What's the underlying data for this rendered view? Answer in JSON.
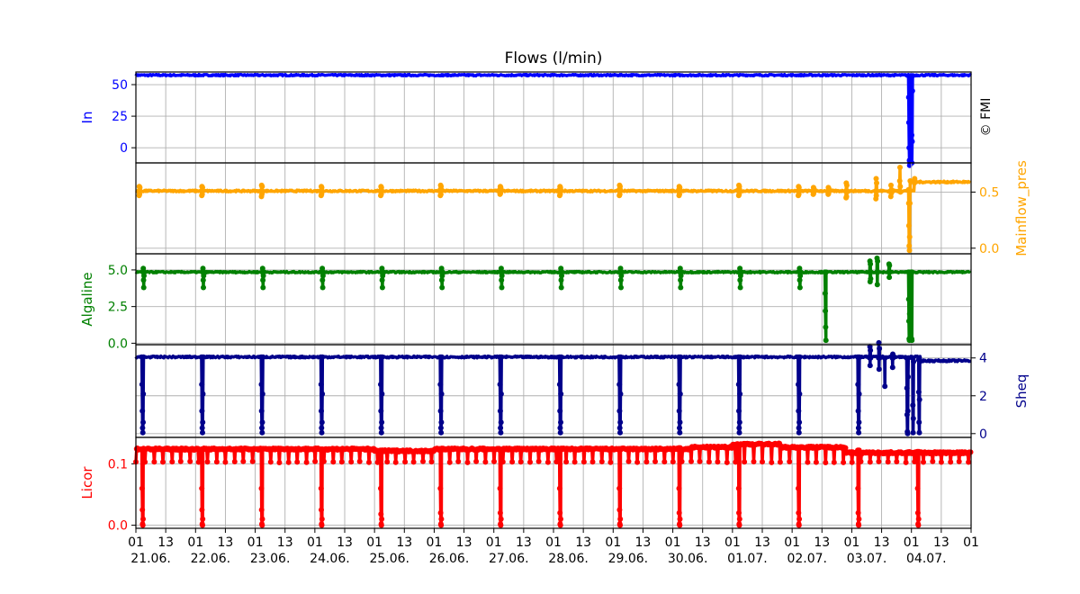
{
  "title": "Flows (l/min)",
  "watermark": "© FMI",
  "x_axis": {
    "hour_labels": [
      "01",
      "13",
      "01",
      "13",
      "01",
      "13",
      "01",
      "13",
      "01",
      "13",
      "01",
      "13",
      "01",
      "13",
      "01",
      "13",
      "01",
      "13",
      "01",
      "13",
      "01",
      "13",
      "01",
      "13",
      "01",
      "13",
      "01",
      "13",
      "01"
    ],
    "date_labels": [
      "21.06.",
      "22.06.",
      "23.06.",
      "24.06.",
      "25.06.",
      "26.06.",
      "27.06.",
      "28.06.",
      "29.06.",
      "30.06.",
      "01.07.",
      "02.07.",
      "03.07.",
      "04.07."
    ],
    "range_days": [
      0,
      14
    ]
  },
  "chart_data": [
    {
      "type": "line",
      "name": "In",
      "ylabel": "In",
      "ylabel_side": "left",
      "color": "#0000ff",
      "ylim": [
        -12,
        60
      ],
      "yticks": [
        "0",
        "25",
        "50"
      ],
      "ytick_values": [
        0,
        25,
        50
      ],
      "baseline": 57.5,
      "noise": 0.6,
      "events": [
        {
          "day": 12.95,
          "values": [
            57,
            40,
            20,
            0,
            -10,
            -14,
            0,
            30,
            55,
            57
          ]
        },
        {
          "day": 13.0,
          "values": [
            56,
            10,
            -12,
            5,
            45,
            57
          ]
        }
      ],
      "drift": []
    },
    {
      "type": "line",
      "name": "Mainflow_pres",
      "ylabel": "Mainflow_pres",
      "ylabel_side": "right",
      "color": "#ffa500",
      "ylim": [
        -0.05,
        0.76
      ],
      "yticks": [
        "0.0",
        "0.5"
      ],
      "ytick_values": [
        0,
        0.5
      ],
      "baseline": 0.51,
      "noise": 0.008,
      "events": [
        {
          "day": 0.05,
          "values": [
            0.51,
            0.47,
            0.55,
            0.48,
            0.54,
            0.51
          ]
        },
        {
          "day": 1.1,
          "values": [
            0.51,
            0.47,
            0.55,
            0.48,
            0.54,
            0.51
          ]
        },
        {
          "day": 2.1,
          "values": [
            0.51,
            0.46,
            0.56,
            0.48,
            0.55,
            0.51
          ]
        },
        {
          "day": 3.1,
          "values": [
            0.51,
            0.47,
            0.55,
            0.48,
            0.54,
            0.51
          ]
        },
        {
          "day": 4.1,
          "values": [
            0.51,
            0.47,
            0.55,
            0.48,
            0.54,
            0.51
          ]
        },
        {
          "day": 5.1,
          "values": [
            0.52,
            0.47,
            0.56,
            0.48,
            0.55,
            0.52
          ]
        },
        {
          "day": 6.1,
          "values": [
            0.52,
            0.48,
            0.55,
            0.49,
            0.54,
            0.52
          ]
        },
        {
          "day": 7.1,
          "values": [
            0.52,
            0.47,
            0.55,
            0.48,
            0.54,
            0.52
          ]
        },
        {
          "day": 8.1,
          "values": [
            0.52,
            0.47,
            0.56,
            0.48,
            0.55,
            0.52
          ]
        },
        {
          "day": 9.1,
          "values": [
            0.52,
            0.47,
            0.55,
            0.48,
            0.54,
            0.52
          ]
        },
        {
          "day": 10.1,
          "values": [
            0.52,
            0.47,
            0.56,
            0.48,
            0.55,
            0.52
          ]
        },
        {
          "day": 11.1,
          "values": [
            0.51,
            0.47,
            0.55,
            0.48,
            0.54,
            0.51
          ]
        },
        {
          "day": 11.35,
          "values": [
            0.51,
            0.48,
            0.54,
            0.49,
            0.53,
            0.51
          ]
        },
        {
          "day": 11.6,
          "values": [
            0.51,
            0.48,
            0.54,
            0.49,
            0.53,
            0.51
          ]
        },
        {
          "day": 11.9,
          "values": [
            0.51,
            0.45,
            0.58,
            0.46,
            0.56,
            0.5
          ]
        },
        {
          "day": 12.4,
          "values": [
            0.51,
            0.44,
            0.62,
            0.47,
            0.58,
            0.51
          ]
        },
        {
          "day": 12.65,
          "values": [
            0.51,
            0.46,
            0.56,
            0.49,
            0.52
          ]
        },
        {
          "day": 12.8,
          "values": [
            0.51,
            0.6,
            0.72,
            0.55,
            0.5
          ]
        },
        {
          "day": 12.95,
          "values": [
            0.52,
            0.4,
            0.2,
            0.02,
            -0.02,
            0.1,
            0.4,
            0.6
          ]
        },
        {
          "day": 13.05,
          "values": [
            0.58,
            0.62,
            0.6,
            0.59
          ]
        }
      ],
      "drift": [
        {
          "from": 13.05,
          "to": 14,
          "value": 0.59
        }
      ]
    },
    {
      "type": "line",
      "name": "Algaline",
      "ylabel": "Algaline",
      "ylabel_side": "left",
      "color": "#008000",
      "ylim": [
        -0.1,
        6.1
      ],
      "yticks": [
        "0.0",
        "2.5",
        "5.0"
      ],
      "ytick_values": [
        0,
        2.5,
        5
      ],
      "baseline": 4.85,
      "noise": 0.05,
      "events": [
        {
          "day": 0.12,
          "values": [
            4.85,
            5.1,
            4.3,
            3.8,
            4.6,
            4.85
          ]
        },
        {
          "day": 1.12,
          "values": [
            4.85,
            5.1,
            4.3,
            3.8,
            4.6,
            4.85
          ]
        },
        {
          "day": 2.12,
          "values": [
            4.85,
            5.1,
            4.3,
            3.8,
            4.6,
            4.85
          ]
        },
        {
          "day": 3.12,
          "values": [
            4.85,
            5.1,
            4.3,
            3.8,
            4.6,
            4.85
          ]
        },
        {
          "day": 4.12,
          "values": [
            4.85,
            5.1,
            4.3,
            3.8,
            4.6,
            4.85
          ]
        },
        {
          "day": 5.12,
          "values": [
            4.85,
            5.1,
            4.3,
            3.8,
            4.6,
            4.85
          ]
        },
        {
          "day": 6.12,
          "values": [
            4.85,
            5.1,
            4.3,
            3.8,
            4.6,
            4.85
          ]
        },
        {
          "day": 7.12,
          "values": [
            4.85,
            5.1,
            4.3,
            3.8,
            4.6,
            4.85
          ]
        },
        {
          "day": 8.12,
          "values": [
            4.85,
            5.1,
            4.3,
            3.8,
            4.6,
            4.85
          ]
        },
        {
          "day": 9.12,
          "values": [
            4.85,
            5.1,
            4.3,
            3.8,
            4.6,
            4.85
          ]
        },
        {
          "day": 10.12,
          "values": [
            4.85,
            5.1,
            4.3,
            3.8,
            4.6,
            4.85
          ]
        },
        {
          "day": 11.12,
          "values": [
            4.85,
            5.1,
            4.3,
            3.8,
            4.6,
            4.85
          ]
        },
        {
          "day": 11.55,
          "values": [
            4.85,
            3.4,
            2.2,
            1.1,
            0.2,
            4.85
          ]
        },
        {
          "day": 12.3,
          "values": [
            4.85,
            5.6,
            4.2,
            5.4,
            4.4,
            4.85
          ]
        },
        {
          "day": 12.42,
          "values": [
            4.85,
            5.8,
            4.0,
            5.6,
            4.85
          ]
        },
        {
          "day": 12.62,
          "values": [
            4.85,
            5.4,
            4.5,
            5.3,
            4.85
          ]
        },
        {
          "day": 12.95,
          "values": [
            4.85,
            3.0,
            1.5,
            0.3,
            0.2,
            2.0,
            4.85
          ]
        },
        {
          "day": 13.0,
          "values": [
            4.85,
            0.3,
            0.2,
            4.85
          ]
        }
      ],
      "drift": []
    },
    {
      "type": "line",
      "name": "Sheq",
      "ylabel": "Sheq",
      "ylabel_side": "right",
      "color": "#00008b",
      "ylim": [
        -0.2,
        4.7
      ],
      "yticks": [
        "0",
        "2",
        "4"
      ],
      "ytick_values": [
        0,
        2,
        4
      ],
      "baseline": 4.05,
      "noise": 0.05,
      "events": [
        {
          "day": 0.1,
          "values": [
            4.05,
            2.6,
            1.2,
            0.3,
            0.05,
            0.6,
            2.1,
            4.05
          ]
        },
        {
          "day": 1.1,
          "values": [
            4.05,
            2.6,
            1.2,
            0.3,
            0.05,
            0.6,
            2.1,
            4.05
          ]
        },
        {
          "day": 2.1,
          "values": [
            4.05,
            2.6,
            1.2,
            0.3,
            0.05,
            0.6,
            2.1,
            4.05
          ]
        },
        {
          "day": 3.1,
          "values": [
            4.05,
            2.6,
            1.2,
            0.3,
            0.05,
            0.6,
            2.1,
            4.05
          ]
        },
        {
          "day": 4.1,
          "values": [
            4.05,
            2.6,
            1.2,
            0.3,
            0.05,
            0.6,
            2.1,
            4.05
          ]
        },
        {
          "day": 5.1,
          "values": [
            4.05,
            2.6,
            1.2,
            0.3,
            0.05,
            0.6,
            2.1,
            4.05
          ]
        },
        {
          "day": 6.1,
          "values": [
            4.05,
            2.6,
            1.2,
            0.3,
            0.05,
            0.6,
            2.1,
            4.05
          ]
        },
        {
          "day": 7.1,
          "values": [
            4.05,
            2.6,
            1.2,
            0.3,
            0.05,
            0.6,
            2.1,
            4.05
          ]
        },
        {
          "day": 8.1,
          "values": [
            4.05,
            2.6,
            1.2,
            0.3,
            0.05,
            0.6,
            2.1,
            4.05
          ]
        },
        {
          "day": 9.1,
          "values": [
            4.05,
            2.6,
            1.2,
            0.3,
            0.05,
            0.6,
            2.1,
            4.05
          ]
        },
        {
          "day": 10.1,
          "values": [
            4.05,
            2.6,
            1.2,
            0.3,
            0.05,
            0.6,
            2.1,
            4.05
          ]
        },
        {
          "day": 11.1,
          "values": [
            4.05,
            2.6,
            1.2,
            0.3,
            0.05,
            0.6,
            2.1,
            4.05
          ]
        },
        {
          "day": 12.1,
          "values": [
            4.05,
            2.6,
            1.2,
            0.3,
            0.05,
            0.6,
            2.1,
            4.05
          ]
        },
        {
          "day": 12.3,
          "values": [
            4.0,
            4.6,
            3.6,
            4.4,
            4.0
          ]
        },
        {
          "day": 12.45,
          "values": [
            4.0,
            4.8,
            3.4,
            4.5,
            4.0
          ]
        },
        {
          "day": 12.55,
          "values": [
            4.0,
            2.5,
            4.0
          ]
        },
        {
          "day": 12.68,
          "values": [
            4.0,
            3.5,
            4.2,
            4.0
          ]
        },
        {
          "day": 12.92,
          "values": [
            4.0,
            2.4,
            1.0,
            0.1,
            0.0,
            1.2,
            3.0,
            4.0
          ]
        },
        {
          "day": 13.02,
          "values": [
            4.0,
            1.5,
            0.05,
            0.8,
            3.8
          ]
        },
        {
          "day": 13.12,
          "values": [
            3.9,
            2.2,
            0.6,
            0.05,
            1.8,
            3.8
          ]
        }
      ],
      "drift": [
        {
          "from": 13.15,
          "to": 14,
          "value": 3.85
        }
      ]
    },
    {
      "type": "line",
      "name": "Licor",
      "ylabel": "Licor",
      "ylabel_side": "left",
      "color": "#ff0000",
      "ylim": [
        -0.005,
        0.143
      ],
      "yticks": [
        "0.0",
        "0.1"
      ],
      "ytick_values": [
        0,
        0.1
      ],
      "baseline": 0.124,
      "noise": 0.0015,
      "dip_every_day": 0.15,
      "dip_value": 0.103,
      "events": [
        {
          "day": 0.1,
          "values": [
            0.124,
            0.06,
            0.025,
            0.002,
            0.0,
            0.01,
            0.124
          ]
        },
        {
          "day": 1.1,
          "values": [
            0.124,
            0.06,
            0.025,
            0.002,
            0.0,
            0.01,
            0.124
          ]
        },
        {
          "day": 2.1,
          "values": [
            0.124,
            0.06,
            0.025,
            0.002,
            0.0,
            0.01,
            0.124
          ]
        },
        {
          "day": 3.1,
          "values": [
            0.124,
            0.06,
            0.025,
            0.002,
            0.0,
            0.01,
            0.124
          ]
        },
        {
          "day": 4.1,
          "values": [
            0.122,
            0.06,
            0.018,
            0.002,
            0.0,
            0.01,
            0.122
          ]
        },
        {
          "day": 5.1,
          "values": [
            0.122,
            0.06,
            0.02,
            0.002,
            0.0,
            0.01,
            0.122
          ]
        },
        {
          "day": 6.1,
          "values": [
            0.122,
            0.06,
            0.02,
            0.002,
            0.0,
            0.01,
            0.122
          ]
        },
        {
          "day": 7.1,
          "values": [
            0.124,
            0.06,
            0.02,
            0.002,
            0.0,
            0.01,
            0.124
          ]
        },
        {
          "day": 8.1,
          "values": [
            0.124,
            0.06,
            0.025,
            0.002,
            0.0,
            0.01,
            0.124
          ]
        },
        {
          "day": 9.1,
          "values": [
            0.126,
            0.06,
            0.02,
            0.002,
            0.0,
            0.01,
            0.126
          ]
        },
        {
          "day": 10.1,
          "values": [
            0.13,
            0.06,
            0.02,
            0.002,
            0.0,
            0.01,
            0.13
          ]
        },
        {
          "day": 11.1,
          "values": [
            0.127,
            0.06,
            0.02,
            0.002,
            0.0,
            0.01,
            0.127
          ]
        },
        {
          "day": 12.1,
          "values": [
            0.122,
            0.06,
            0.02,
            0.002,
            0.0,
            0.01,
            0.122
          ]
        },
        {
          "day": 13.1,
          "values": [
            0.12,
            0.06,
            0.02,
            0.002,
            0.0,
            0.01,
            0.12
          ]
        }
      ],
      "drift": [
        {
          "from": 0,
          "to": 4.0,
          "value": 0.124
        },
        {
          "from": 4.0,
          "to": 5.0,
          "value": 0.121
        },
        {
          "from": 5.0,
          "to": 9.3,
          "value": 0.124
        },
        {
          "from": 9.3,
          "to": 10.0,
          "value": 0.127
        },
        {
          "from": 10.0,
          "to": 10.8,
          "value": 0.132
        },
        {
          "from": 10.8,
          "to": 11.9,
          "value": 0.127
        },
        {
          "from": 11.9,
          "to": 14.0,
          "value": 0.118
        }
      ]
    }
  ]
}
